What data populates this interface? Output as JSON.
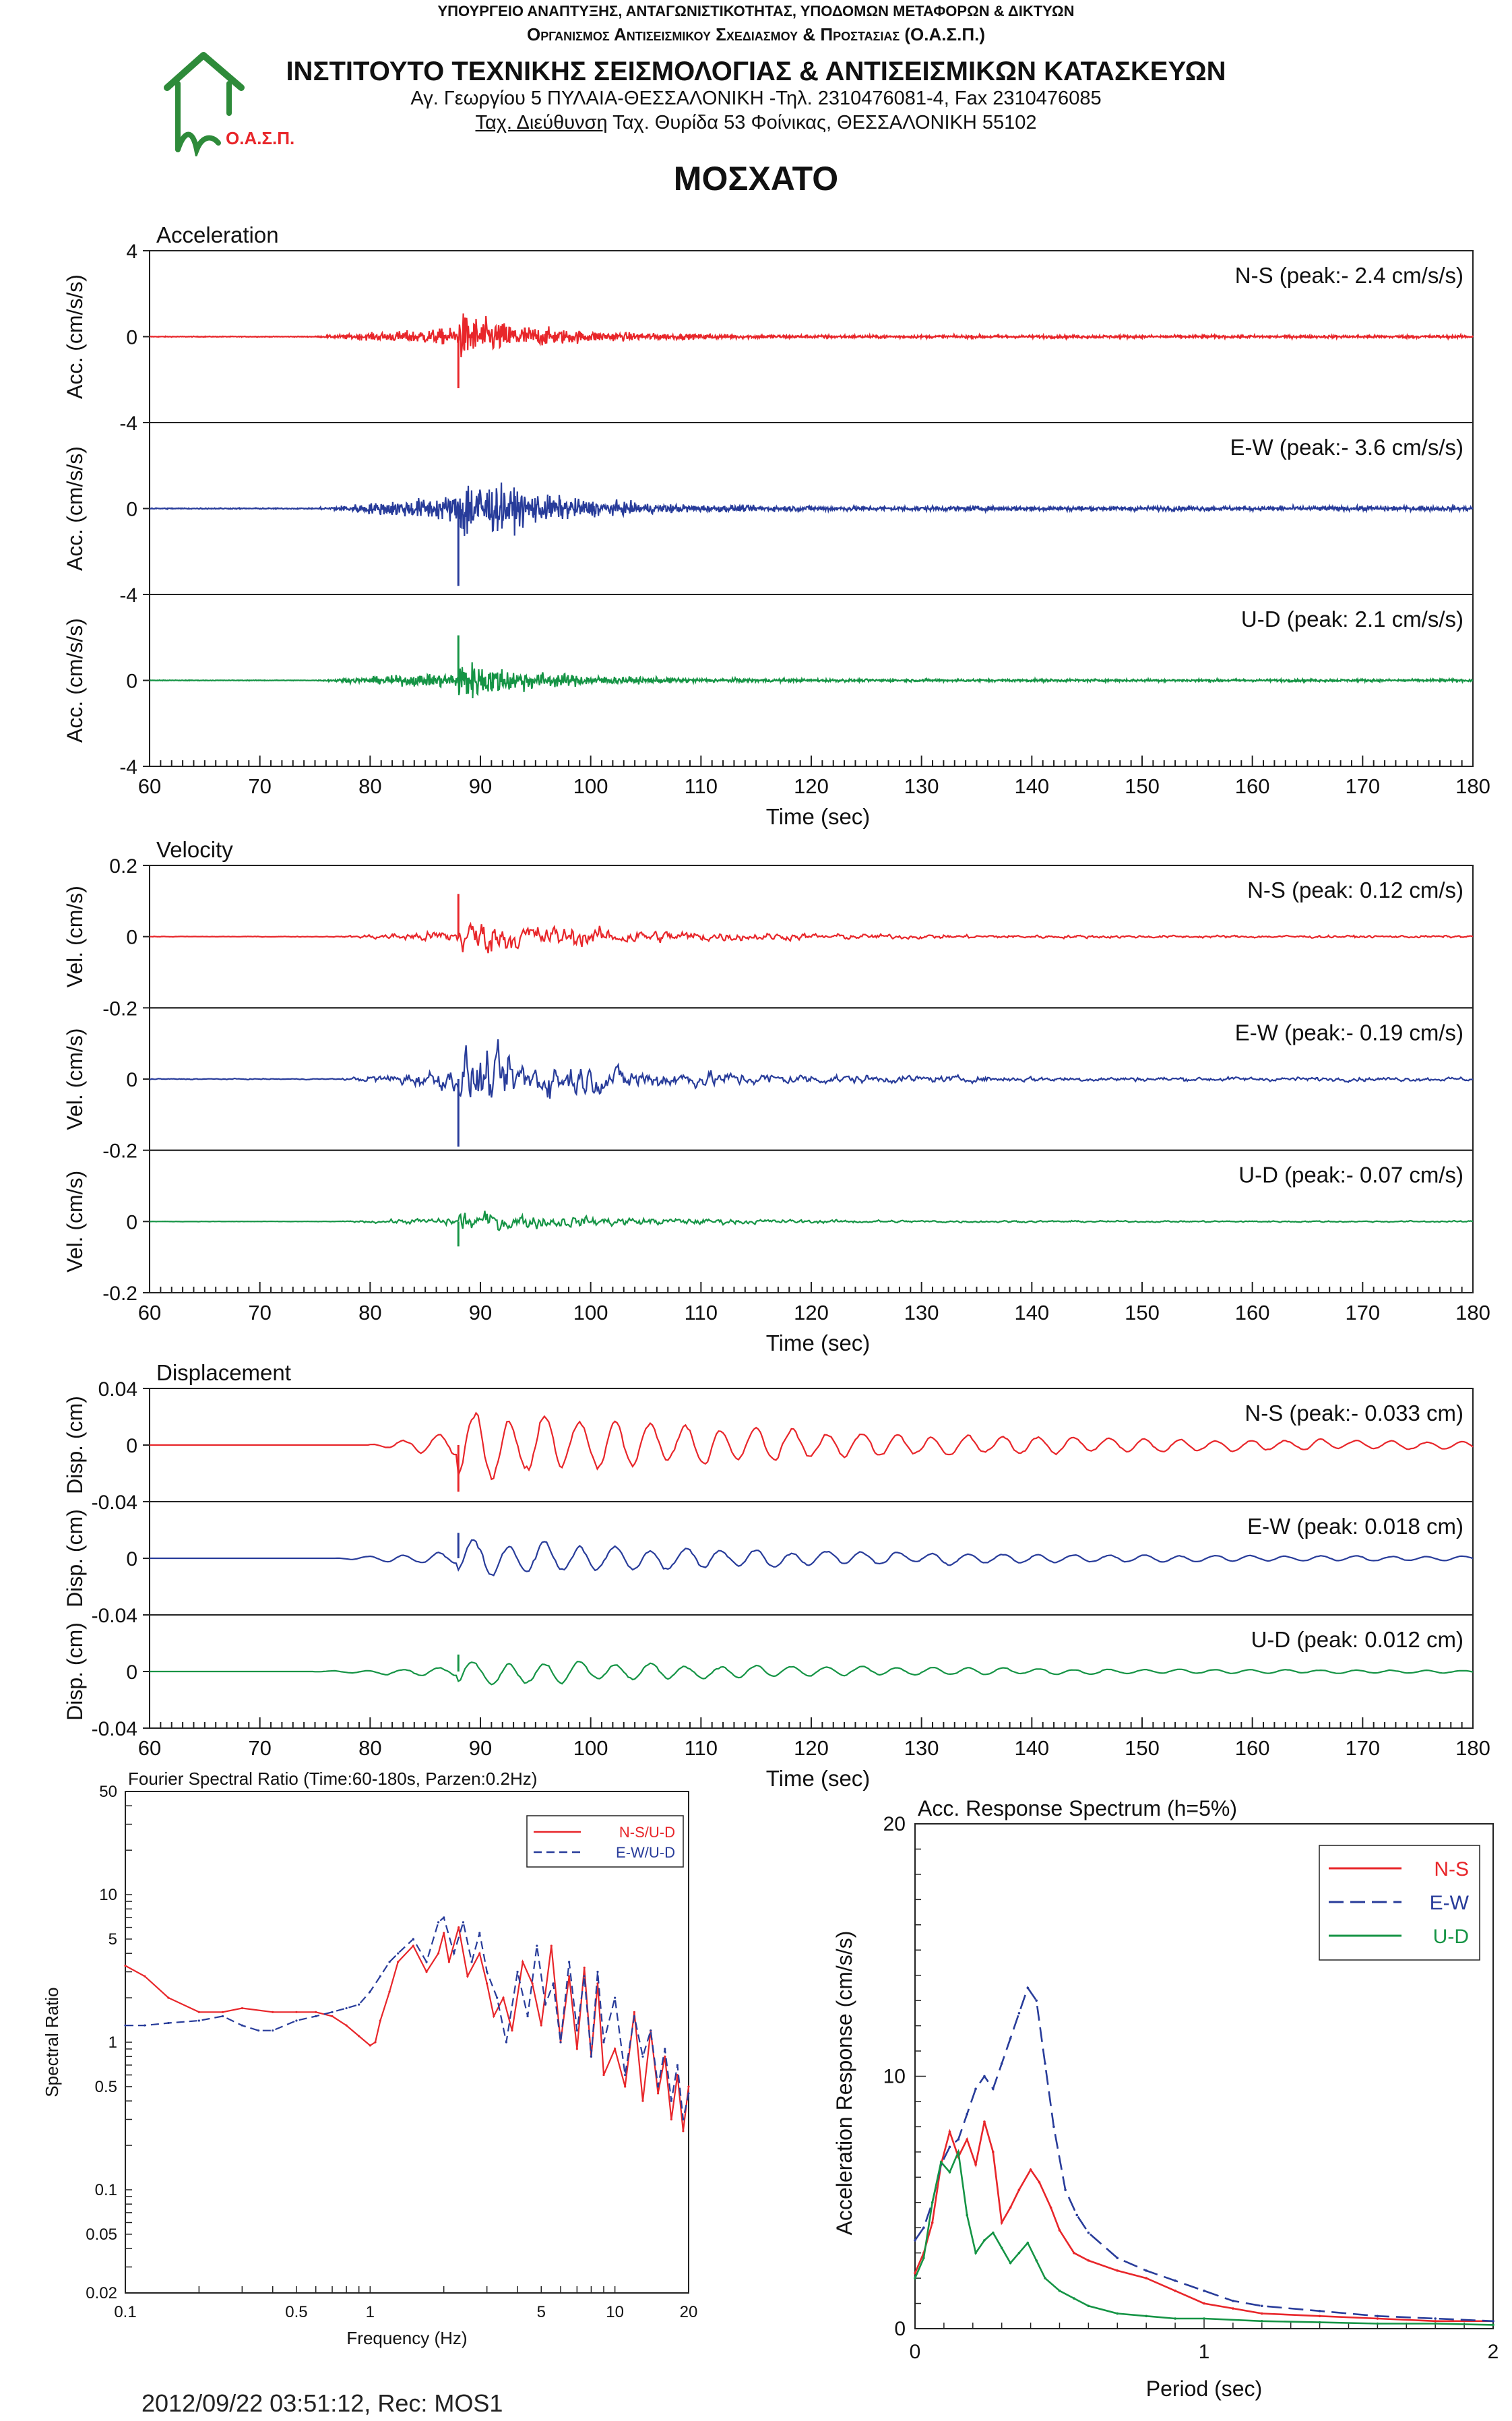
{
  "header": {
    "ministry": "ΥΠΟΥΡΓΕΙΟ ΑΝΑΠΤΥΞΗΣ, ΑΝΤΑΓΩΝΙΣΤΙΚΟΤΗΤΑΣ, ΥΠΟΔΟΜΩΝ ΜΕΤΑΦΟΡΩΝ & ΔΙΚΤΥΩΝ",
    "organization": "Οργανισμος Αντισεισμικου Σχεδιασμου & Προστασιας (Ο.Α.Σ.Π.)",
    "institute": "ΙΝΣΤΙΤΟΥΤΟ ΤΕΧΝΙΚΗΣ ΣΕΙΣΜΟΛΟΓΙΑΣ & ΑΝΤΙΣΕΙΣΜΙΚΩΝ ΚΑΤΑΣΚΕΥΩΝ",
    "address": "Αγ. Γεωργίου 5 ΠΥΛΑΙΑ-ΘΕΣΣΑΛΟΝΙΚΗ -Τηλ. 2310476081-4, Fax 2310476085",
    "postal_label": "Ταχ. Διεύθυνση",
    "postal_value": " Ταχ. Θυρίδα 53 Φοίνικας, ΘΕΣΣΑΛΟΝΙΚΗ 55102",
    "logo_text": "Ο.Α.Σ.Π."
  },
  "station": "ΜΟΣΧΑΤΟ",
  "footer": "2012/09/22 03:51:12, Rec: MOS1",
  "colors": {
    "ns": "#e8262a",
    "ew": "#283c9a",
    "ud": "#159445",
    "logo": "#2e8b3a",
    "logo_text": "#e8262a"
  },
  "chart_data": [
    {
      "type": "line",
      "title": "Acceleration",
      "xlabel": "Time (sec)",
      "ylabel": "Acc. (cm/s/s)",
      "xlim": [
        60,
        180
      ],
      "ylim": [
        -4,
        4
      ],
      "xticks": [
        60,
        70,
        80,
        90,
        100,
        110,
        120,
        130,
        140,
        150,
        160,
        170,
        180
      ],
      "yticks": [
        4,
        0,
        -4
      ],
      "series": [
        {
          "name": "N-S",
          "label": "N-S (peak:- 2.4 cm/s/s)",
          "peak": -2.4,
          "unit": "cm/s/s",
          "onset": 75,
          "arrival": 88,
          "color": "#e8262a"
        },
        {
          "name": "E-W",
          "label": "E-W (peak:- 3.6 cm/s/s)",
          "peak": -3.6,
          "unit": "cm/s/s",
          "onset": 75,
          "arrival": 88,
          "color": "#283c9a"
        },
        {
          "name": "U-D",
          "label": "U-D (peak: 2.1 cm/s/s)",
          "peak": 2.1,
          "unit": "cm/s/s",
          "onset": 75,
          "arrival": 88,
          "color": "#159445"
        }
      ]
    },
    {
      "type": "line",
      "title": "Velocity",
      "xlabel": "Time (sec)",
      "ylabel": "Vel. (cm/s)",
      "xlim": [
        60,
        180
      ],
      "ylim": [
        -0.2,
        0.2
      ],
      "xticks": [
        60,
        70,
        80,
        90,
        100,
        110,
        120,
        130,
        140,
        150,
        160,
        170,
        180
      ],
      "yticks": [
        0.2,
        0,
        -0.2
      ],
      "series": [
        {
          "name": "N-S",
          "label": "N-S (peak: 0.12 cm/s)",
          "peak": 0.12,
          "unit": "cm/s",
          "onset": 77,
          "arrival": 88,
          "color": "#e8262a"
        },
        {
          "name": "E-W",
          "label": "E-W (peak:- 0.19 cm/s)",
          "peak": -0.19,
          "unit": "cm/s",
          "onset": 77,
          "arrival": 88,
          "color": "#283c9a"
        },
        {
          "name": "U-D",
          "label": "U-D (peak:- 0.07 cm/s)",
          "peak": -0.07,
          "unit": "cm/s",
          "onset": 77,
          "arrival": 88,
          "color": "#159445"
        }
      ]
    },
    {
      "type": "line",
      "title": "Displacement",
      "xlabel": "Time (sec)",
      "ylabel": "Disp. (cm)",
      "xlim": [
        60,
        180
      ],
      "ylim": [
        -0.04,
        0.04
      ],
      "xticks": [
        60,
        70,
        80,
        90,
        100,
        110,
        120,
        130,
        140,
        150,
        160,
        170,
        180
      ],
      "yticks": [
        0.04,
        0,
        -0.04
      ],
      "series": [
        {
          "name": "N-S",
          "label": "N-S (peak:- 0.033 cm)",
          "peak": -0.033,
          "unit": "cm",
          "onset": 80,
          "arrival": 88,
          "color": "#e8262a"
        },
        {
          "name": "E-W",
          "label": "E-W (peak: 0.018 cm)",
          "peak": 0.018,
          "unit": "cm",
          "onset": 77,
          "arrival": 88,
          "color": "#283c9a"
        },
        {
          "name": "U-D",
          "label": "U-D (peak: 0.012 cm)",
          "peak": 0.012,
          "unit": "cm",
          "onset": 75,
          "arrival": 88,
          "color": "#159445"
        }
      ]
    },
    {
      "type": "line",
      "title": "Fourier Spectral Ratio (Time:60-180s, Parzen:0.2Hz)",
      "xlabel": "Frequency (Hz)",
      "ylabel": "Spectral Ratio",
      "xscale": "log",
      "yscale": "log",
      "xlim": [
        0.1,
        20
      ],
      "ylim": [
        0.02,
        50
      ],
      "xticks": [
        0.1,
        0.5,
        1,
        5,
        10,
        20
      ],
      "xticklabels": [
        "0.1",
        "0.5",
        "1",
        "5",
        "10",
        "20"
      ],
      "yticks": [
        50,
        10,
        5,
        1,
        0.5,
        0.1,
        0.05,
        0.02
      ],
      "yticklabels": [
        "50",
        "10",
        "5",
        "1",
        "0.5",
        "0.1",
        "0.05",
        "0.02"
      ],
      "legend": "top-right",
      "series": [
        {
          "name": "N-S/U-D",
          "style": "solid",
          "color": "#e8262a",
          "x": [
            0.1,
            0.12,
            0.15,
            0.2,
            0.25,
            0.3,
            0.4,
            0.5,
            0.6,
            0.7,
            0.8,
            0.9,
            1.0,
            1.05,
            1.1,
            1.2,
            1.3,
            1.5,
            1.7,
            1.9,
            2.0,
            2.1,
            2.3,
            2.5,
            2.8,
            3.0,
            3.2,
            3.5,
            3.8,
            4.2,
            4.6,
            5.0,
            5.5,
            6.0,
            6.5,
            7.0,
            7.5,
            8.0,
            8.5,
            9.0,
            10.0,
            11.0,
            12.0,
            13.0,
            14.0,
            15.0,
            16.0,
            17.0,
            18.0,
            19.0,
            20.0
          ],
          "y": [
            3.3,
            2.8,
            2.0,
            1.6,
            1.6,
            1.7,
            1.6,
            1.6,
            1.6,
            1.5,
            1.3,
            1.1,
            0.95,
            1.0,
            1.4,
            2.2,
            3.5,
            4.5,
            3.0,
            4.0,
            5.5,
            3.5,
            6.0,
            2.8,
            4.0,
            2.5,
            1.5,
            2.0,
            1.2,
            3.5,
            2.5,
            1.3,
            4.5,
            1.0,
            2.8,
            0.9,
            3.2,
            0.8,
            2.5,
            0.6,
            0.9,
            0.5,
            1.6,
            0.4,
            1.2,
            0.45,
            0.8,
            0.3,
            0.6,
            0.25,
            0.5
          ]
        },
        {
          "name": "E-W/U-D",
          "style": "dashed",
          "color": "#283c9a",
          "x": [
            0.1,
            0.12,
            0.15,
            0.2,
            0.25,
            0.3,
            0.35,
            0.4,
            0.5,
            0.6,
            0.7,
            0.8,
            0.9,
            1.0,
            1.1,
            1.2,
            1.3,
            1.5,
            1.7,
            1.9,
            2.0,
            2.2,
            2.4,
            2.6,
            2.8,
            3.0,
            3.3,
            3.6,
            4.0,
            4.4,
            4.8,
            5.2,
            5.6,
            6.0,
            6.5,
            7.0,
            7.5,
            8.0,
            8.5,
            9.0,
            10.0,
            11.0,
            12.0,
            13.0,
            14.0,
            15.0,
            16.0,
            17.0,
            18.0,
            19.0,
            20.0
          ],
          "y": [
            1.3,
            1.3,
            1.35,
            1.4,
            1.5,
            1.3,
            1.2,
            1.2,
            1.4,
            1.5,
            1.6,
            1.7,
            1.8,
            2.2,
            2.8,
            3.5,
            4.0,
            5.0,
            3.5,
            6.5,
            7.0,
            4.0,
            6.5,
            3.5,
            5.5,
            3.0,
            2.0,
            1.0,
            3.0,
            1.5,
            4.5,
            1.8,
            2.5,
            1.0,
            3.5,
            1.2,
            2.8,
            0.8,
            3.0,
            1.0,
            2.0,
            0.6,
            1.5,
            0.8,
            1.2,
            0.5,
            0.9,
            0.4,
            0.7,
            0.3,
            0.45
          ]
        }
      ]
    },
    {
      "type": "line",
      "title": "Acc. Response Spectrum (h=5%)",
      "xlabel": "Period (sec)",
      "ylabel": "Acceleration Response (cm/s/s)",
      "xlim": [
        0,
        2
      ],
      "ylim": [
        0,
        20
      ],
      "xticks": [
        0,
        1,
        2
      ],
      "yticks": [
        0,
        10,
        20
      ],
      "legend": "top-right",
      "series": [
        {
          "name": "N-S",
          "style": "solid",
          "color": "#e8262a",
          "x": [
            0.0,
            0.03,
            0.06,
            0.09,
            0.12,
            0.15,
            0.18,
            0.21,
            0.24,
            0.27,
            0.3,
            0.33,
            0.36,
            0.4,
            0.43,
            0.47,
            0.5,
            0.55,
            0.6,
            0.7,
            0.8,
            0.9,
            1.0,
            1.1,
            1.2,
            1.4,
            1.6,
            1.8,
            2.0
          ],
          "y": [
            2.2,
            3.0,
            4.2,
            6.5,
            7.8,
            6.8,
            7.5,
            6.5,
            8.2,
            7.0,
            4.2,
            4.8,
            5.5,
            6.3,
            5.8,
            4.8,
            3.9,
            3.0,
            2.7,
            2.3,
            2.0,
            1.5,
            1.0,
            0.8,
            0.6,
            0.5,
            0.4,
            0.3,
            0.3
          ]
        },
        {
          "name": "E-W",
          "style": "dashed",
          "color": "#283c9a",
          "x": [
            0.0,
            0.03,
            0.06,
            0.09,
            0.12,
            0.15,
            0.18,
            0.21,
            0.24,
            0.27,
            0.3,
            0.33,
            0.36,
            0.39,
            0.42,
            0.45,
            0.48,
            0.52,
            0.56,
            0.6,
            0.7,
            0.8,
            0.9,
            1.0,
            1.1,
            1.2,
            1.4,
            1.6,
            1.8,
            2.0
          ],
          "y": [
            3.5,
            4.0,
            5.0,
            6.5,
            7.2,
            7.5,
            8.5,
            9.5,
            10.0,
            9.5,
            10.5,
            11.5,
            12.5,
            13.5,
            13.0,
            10.5,
            8.0,
            5.5,
            4.5,
            3.8,
            2.8,
            2.3,
            1.9,
            1.5,
            1.1,
            0.9,
            0.7,
            0.5,
            0.4,
            0.3
          ]
        },
        {
          "name": "U-D",
          "style": "solid",
          "color": "#159445",
          "x": [
            0.0,
            0.03,
            0.06,
            0.09,
            0.12,
            0.15,
            0.18,
            0.21,
            0.24,
            0.27,
            0.3,
            0.33,
            0.36,
            0.39,
            0.42,
            0.45,
            0.5,
            0.55,
            0.6,
            0.7,
            0.8,
            0.9,
            1.0,
            1.2,
            1.4,
            1.6,
            1.8,
            2.0
          ],
          "y": [
            2.0,
            2.8,
            5.0,
            6.6,
            6.2,
            7.0,
            4.5,
            3.0,
            3.5,
            3.8,
            3.2,
            2.6,
            3.0,
            3.4,
            2.7,
            2.0,
            1.5,
            1.2,
            0.9,
            0.6,
            0.5,
            0.4,
            0.4,
            0.3,
            0.25,
            0.2,
            0.2,
            0.15
          ]
        }
      ]
    }
  ]
}
